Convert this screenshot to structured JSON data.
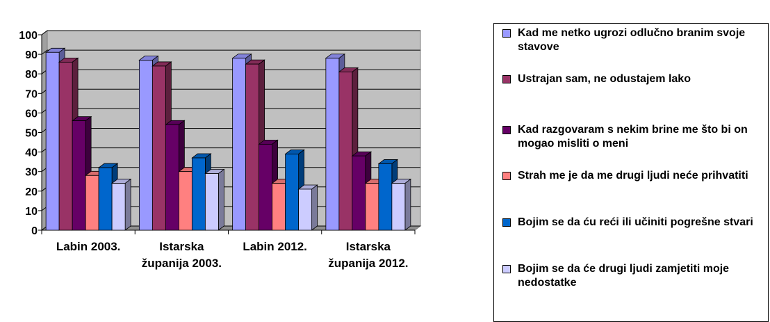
{
  "chart_data": {
    "type": "bar3d",
    "categories": [
      "Labin 2003.",
      "Istarska županija 2003.",
      "Labin 2012.",
      "Istarska županija 2012."
    ],
    "series": [
      {
        "name": "Kad me netko ugrozi odlučno branim svoje stavove",
        "color": "#9999ff",
        "values": [
          91,
          87,
          88,
          88
        ]
      },
      {
        "name": "Ustrajan sam, ne odustajem lako",
        "color": "#993366",
        "values": [
          86,
          84,
          85,
          81
        ]
      },
      {
        "name": "Kad razgovaram s nekim brine me što bi on mogao misliti o meni",
        "color": "#660066",
        "values": [
          56,
          54,
          44,
          38
        ]
      },
      {
        "name": "Strah me je da me drugi ljudi neće prihvatiti",
        "color": "#ff8080",
        "values": [
          28,
          30,
          24,
          24
        ]
      },
      {
        "name": "Bojim se da ću reći ili učiniti pogrešne stvari",
        "color": "#0066cc",
        "values": [
          32,
          37,
          39,
          34
        ]
      },
      {
        "name": "Bojim se da će drugi ljudi zamjetiti moje nedostatke",
        "color": "#ccccff",
        "values": [
          24,
          29,
          21,
          24
        ]
      }
    ],
    "ylim": [
      0,
      100
    ],
    "yticks": [
      0,
      10,
      20,
      30,
      40,
      50,
      60,
      70,
      80,
      90,
      100
    ],
    "grid": true,
    "legend": "right"
  }
}
